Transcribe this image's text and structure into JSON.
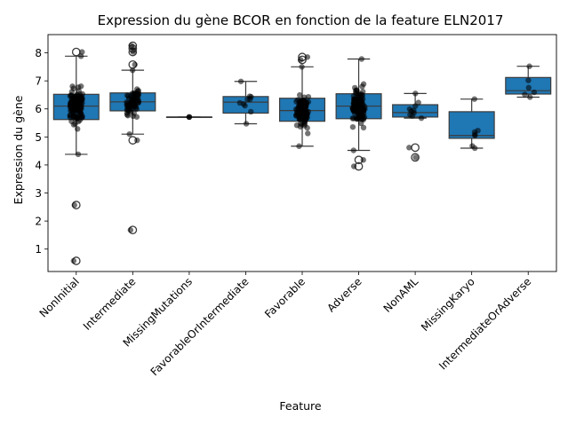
{
  "chart_data": {
    "type": "box",
    "title": "Expression du gène BCOR en fonction de la feature ELN2017",
    "xlabel": "Feature",
    "ylabel": "Expression du gène",
    "ylim": [
      0.2,
      8.65
    ],
    "yticks": [
      1,
      2,
      3,
      4,
      5,
      6,
      7,
      8
    ],
    "grid": false,
    "colors": {
      "box": "#1f77b4",
      "points": "#000000",
      "outline": "#3b3b3b"
    },
    "categories": [
      "NonInitial",
      "Intermediate",
      "MissingMutations",
      "FavorableOrIntermediate",
      "Favorable",
      "Adverse",
      "NonAML",
      "MissingKaryo",
      "IntermediateOrAdverse"
    ],
    "boxes": [
      {
        "category": "NonInitial",
        "whisker_low": 4.38,
        "q1": 5.62,
        "median": 6.1,
        "q3": 6.52,
        "whisker_high": 7.88,
        "outliers": [
          2.57,
          0.58,
          8.03
        ],
        "n_points": 120
      },
      {
        "category": "Intermediate",
        "whisker_low": 5.1,
        "q1": 5.93,
        "median": 6.25,
        "q3": 6.57,
        "whisker_high": 7.38,
        "outliers": [
          1.68,
          4.88,
          7.58,
          8.03,
          8.15,
          8.25
        ],
        "n_points": 75
      },
      {
        "category": "MissingMutations",
        "whisker_low": 5.71,
        "q1": 5.71,
        "median": 5.71,
        "q3": 5.71,
        "whisker_high": 5.71,
        "outliers": [],
        "n_points": 1
      },
      {
        "category": "FavorableOrIntermediate",
        "whisker_low": 5.47,
        "q1": 5.85,
        "median": 6.24,
        "q3": 6.44,
        "whisker_high": 6.98,
        "outliers": [],
        "n_points": 8
      },
      {
        "category": "Favorable",
        "whisker_low": 4.67,
        "q1": 5.56,
        "median": 5.94,
        "q3": 6.38,
        "whisker_high": 7.5,
        "outliers": [
          7.75,
          7.85
        ],
        "n_points": 90
      },
      {
        "category": "Adverse",
        "whisker_low": 4.52,
        "q1": 5.65,
        "median": 6.1,
        "q3": 6.54,
        "whisker_high": 7.78,
        "outliers": [
          3.95,
          4.18
        ],
        "n_points": 110
      },
      {
        "category": "NonAML",
        "whisker_low": 5.67,
        "q1": 5.71,
        "median": 5.87,
        "q3": 6.15,
        "whisker_high": 6.55,
        "outliers": [
          4.27,
          4.62
        ],
        "n_points": 8
      },
      {
        "category": "MissingKaryo",
        "whisker_low": 4.6,
        "q1": 4.95,
        "median": 5.05,
        "q3": 5.9,
        "whisker_high": 6.35,
        "outliers": [],
        "n_points": 5
      },
      {
        "category": "IntermediateOrAdverse",
        "whisker_low": 6.42,
        "q1": 6.53,
        "median": 6.65,
        "q3": 7.12,
        "whisker_high": 7.52,
        "outliers": [],
        "n_points": 4
      }
    ]
  }
}
